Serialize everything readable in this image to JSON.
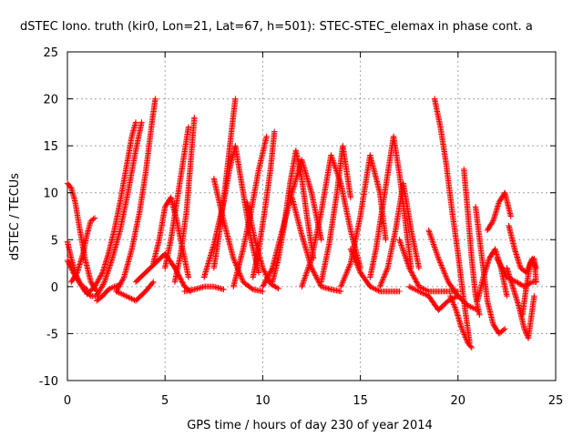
{
  "chart_data": {
    "type": "scatter",
    "title": "dSTEC Iono. truth (kir0, Lon=21, Lat=67, h=501): STEC-STEC_elemax in phase cont. a",
    "xlabel": "GPS time / hours of day 230 of year 2014",
    "ylabel": "dSTEC  / TECUs",
    "xlim": [
      0,
      25
    ],
    "ylim": [
      -10,
      25
    ],
    "xticks": [
      "0",
      "5",
      "10",
      "15",
      "20",
      "25"
    ],
    "yticks": [
      "-10",
      "-5",
      "0",
      "5",
      "10",
      "15",
      "20",
      "25"
    ],
    "grid": true,
    "marker": "plus",
    "series_color": "#ff0000",
    "arcs": [
      {
        "x": [
          0.0,
          0.2,
          0.4,
          0.6,
          0.9,
          1.2,
          1.5
        ],
        "y": [
          11.0,
          10.5,
          9.0,
          6.5,
          3.0,
          0.5,
          -0.5
        ]
      },
      {
        "x": [
          0.0,
          0.2,
          0.4,
          0.6,
          0.8,
          1.0
        ],
        "y": [
          4.8,
          3.0,
          1.5,
          0.5,
          0.0,
          -0.3
        ]
      },
      {
        "x": [
          0.0,
          0.3,
          0.6,
          0.9,
          1.2,
          1.5
        ],
        "y": [
          2.8,
          1.5,
          0.5,
          -0.5,
          -1.0,
          -1.0
        ]
      },
      {
        "x": [
          0.2,
          0.5,
          0.8,
          1.0,
          1.2,
          1.4
        ],
        "y": [
          0.5,
          1.5,
          3.5,
          5.5,
          7.0,
          7.3
        ]
      },
      {
        "x": [
          1.0,
          1.4,
          1.8,
          2.1,
          2.4,
          2.7,
          3.0,
          3.3,
          3.5
        ],
        "y": [
          -0.8,
          0.0,
          1.5,
          3.5,
          6.0,
          9.0,
          12.5,
          16.0,
          17.5
        ]
      },
      {
        "x": [
          1.5,
          1.9,
          2.3,
          2.7,
          3.1,
          3.5,
          3.8
        ],
        "y": [
          -1.0,
          0.5,
          3.0,
          6.0,
          10.0,
          14.5,
          17.5
        ]
      },
      {
        "x": [
          1.5,
          1.8,
          2.1,
          2.4,
          2.7
        ],
        "y": [
          -1.5,
          -1.0,
          -0.3,
          0.0,
          0.2
        ]
      },
      {
        "x": [
          2.5,
          2.9,
          3.3,
          3.7,
          4.0,
          4.3,
          4.5
        ],
        "y": [
          -0.5,
          1.0,
          4.0,
          8.0,
          12.0,
          17.0,
          20.0
        ]
      },
      {
        "x": [
          2.5,
          3.0,
          3.5,
          4.0,
          4.4
        ],
        "y": [
          -0.5,
          -1.0,
          -1.5,
          -0.5,
          0.5
        ]
      },
      {
        "x": [
          3.5,
          4.0,
          4.5,
          5.0,
          5.5,
          6.0,
          6.3
        ],
        "y": [
          0.5,
          1.5,
          2.5,
          3.5,
          2.0,
          0.0,
          -0.5
        ]
      },
      {
        "x": [
          4.4,
          4.7,
          5.0,
          5.3,
          5.6,
          5.9,
          6.2
        ],
        "y": [
          2.5,
          5.0,
          8.5,
          9.5,
          7.0,
          4.0,
          1.0
        ]
      },
      {
        "x": [
          5.0,
          5.3,
          5.6,
          5.9,
          6.2
        ],
        "y": [
          2.0,
          5.0,
          9.0,
          13.0,
          17.0
        ]
      },
      {
        "x": [
          5.5,
          5.8,
          6.1,
          6.3,
          6.5
        ],
        "y": [
          0.5,
          3.5,
          8.0,
          13.0,
          18.0
        ]
      },
      {
        "x": [
          6.0,
          6.5,
          7.0,
          7.5,
          8.0
        ],
        "y": [
          -0.5,
          -0.3,
          0.0,
          0.0,
          -0.3
        ]
      },
      {
        "x": [
          7.0,
          7.5,
          8.0,
          8.3,
          8.6,
          9.0,
          9.4,
          9.8
        ],
        "y": [
          1.0,
          4.5,
          9.0,
          12.5,
          15.0,
          10.0,
          5.0,
          1.5
        ]
      },
      {
        "x": [
          7.5,
          7.8,
          8.1,
          8.4,
          8.6
        ],
        "y": [
          2.0,
          6.0,
          11.0,
          16.5,
          20.0
        ]
      },
      {
        "x": [
          7.5,
          8.0,
          8.5,
          9.0,
          9.5,
          10.0
        ],
        "y": [
          11.5,
          7.0,
          3.0,
          0.5,
          -0.3,
          -0.5
        ]
      },
      {
        "x": [
          8.5,
          9.0,
          9.4,
          9.8,
          10.2
        ],
        "y": [
          0.0,
          4.0,
          8.0,
          12.5,
          16.0
        ]
      },
      {
        "x": [
          9.2,
          9.6,
          10.0,
          10.4,
          10.8
        ],
        "y": [
          9.0,
          5.0,
          2.0,
          0.3,
          -0.2
        ]
      },
      {
        "x": [
          9.5,
          9.8,
          10.1,
          10.4,
          10.6
        ],
        "y": [
          1.0,
          4.0,
          8.0,
          12.5,
          16.5
        ]
      },
      {
        "x": [
          10.0,
          10.5,
          11.0,
          11.5,
          12.0,
          12.5,
          13.0
        ],
        "y": [
          0.0,
          2.0,
          6.0,
          10.0,
          13.5,
          10.0,
          5.0
        ]
      },
      {
        "x": [
          10.5,
          10.8,
          11.1,
          11.4,
          11.7,
          12.0,
          12.3,
          12.6
        ],
        "y": [
          0.5,
          3.0,
          6.5,
          11.0,
          14.5,
          11.5,
          7.0,
          3.0
        ]
      },
      {
        "x": [
          11.5,
          12.0,
          12.5,
          13.0,
          13.5,
          14.0
        ],
        "y": [
          9.5,
          5.5,
          2.0,
          0.0,
          -0.3,
          -0.5
        ]
      },
      {
        "x": [
          12.0,
          12.5,
          13.0,
          13.5,
          14.0,
          14.5,
          15.0
        ],
        "y": [
          0.0,
          3.0,
          8.0,
          14.0,
          11.0,
          6.0,
          2.0
        ]
      },
      {
        "x": [
          13.0,
          13.4,
          13.8,
          14.1,
          14.5
        ],
        "y": [
          0.5,
          4.5,
          10.0,
          15.0,
          9.5
        ]
      },
      {
        "x": [
          14.0,
          14.5,
          15.0,
          15.5,
          16.0,
          16.3
        ],
        "y": [
          0.0,
          2.5,
          7.5,
          14.0,
          10.0,
          5.0
        ]
      },
      {
        "x": [
          14.5,
          15.0,
          15.5,
          16.0,
          16.5,
          17.0
        ],
        "y": [
          4.0,
          1.5,
          0.0,
          -0.5,
          -0.5,
          -0.5
        ]
      },
      {
        "x": [
          15.5,
          15.8,
          16.1,
          16.4,
          16.7,
          17.0,
          17.3,
          17.6
        ],
        "y": [
          1.0,
          4.0,
          8.0,
          12.0,
          16.0,
          12.0,
          7.0,
          2.0
        ]
      },
      {
        "x": [
          16.0,
          16.4,
          16.8,
          17.2,
          17.6,
          18.0
        ],
        "y": [
          0.0,
          2.0,
          6.0,
          11.0,
          6.0,
          2.0
        ]
      },
      {
        "x": [
          17.0,
          17.5,
          18.0,
          18.5,
          19.0,
          19.5,
          20.0
        ],
        "y": [
          5.0,
          2.0,
          0.0,
          -0.5,
          -0.5,
          -0.5,
          -0.5
        ]
      },
      {
        "x": [
          17.5,
          18.0,
          18.5,
          19.0,
          19.5,
          20.0
        ],
        "y": [
          0.0,
          -0.5,
          -1.0,
          -2.5,
          -1.5,
          -1.0
        ]
      },
      {
        "x": [
          18.8,
          19.1,
          19.4,
          19.7,
          20.0,
          20.3,
          20.6
        ],
        "y": [
          20.0,
          17.0,
          13.0,
          8.0,
          3.5,
          -1.5,
          -6.0
        ]
      },
      {
        "x": [
          18.5,
          19.0,
          19.5,
          20.0,
          20.5,
          21.0
        ],
        "y": [
          6.0,
          3.0,
          0.5,
          -1.0,
          -2.0,
          -2.5
        ]
      },
      {
        "x": [
          19.6,
          19.9,
          20.2,
          20.5,
          20.7
        ],
        "y": [
          -1.0,
          -2.5,
          -4.5,
          -6.0,
          -6.5
        ]
      },
      {
        "x": [
          20.3,
          20.5,
          20.7,
          20.9,
          21.1
        ],
        "y": [
          12.5,
          8.0,
          3.0,
          -1.0,
          -3.0
        ]
      },
      {
        "x": [
          20.9,
          21.2,
          21.5,
          21.8,
          22.1,
          22.4
        ],
        "y": [
          8.5,
          3.5,
          -1.5,
          -4.0,
          -5.0,
          -4.5
        ]
      },
      {
        "x": [
          21.0,
          21.3,
          21.6,
          21.9,
          22.2,
          22.5
        ],
        "y": [
          -1.5,
          1.0,
          3.0,
          4.0,
          2.0,
          -1.0
        ]
      },
      {
        "x": [
          21.5,
          21.8,
          22.1,
          22.4,
          22.7
        ],
        "y": [
          6.0,
          7.0,
          9.0,
          10.0,
          7.5
        ]
      },
      {
        "x": [
          22.0,
          22.5,
          23.0,
          23.4,
          23.8,
          24.0
        ],
        "y": [
          3.0,
          1.0,
          0.5,
          0.0,
          0.5,
          0.5
        ]
      },
      {
        "x": [
          22.5,
          22.8,
          23.1,
          23.4,
          23.6,
          23.9
        ],
        "y": [
          2.0,
          0.0,
          -2.0,
          -4.5,
          -5.5,
          -1.0
        ]
      },
      {
        "x": [
          22.6,
          22.9,
          23.2,
          23.5,
          23.8,
          24.0
        ],
        "y": [
          6.5,
          4.0,
          2.0,
          1.5,
          3.0,
          2.0
        ]
      },
      {
        "x": [
          23.3,
          23.5,
          23.7,
          23.9,
          24.0
        ],
        "y": [
          -3.0,
          0.0,
          2.5,
          3.0,
          0.5
        ]
      }
    ]
  }
}
